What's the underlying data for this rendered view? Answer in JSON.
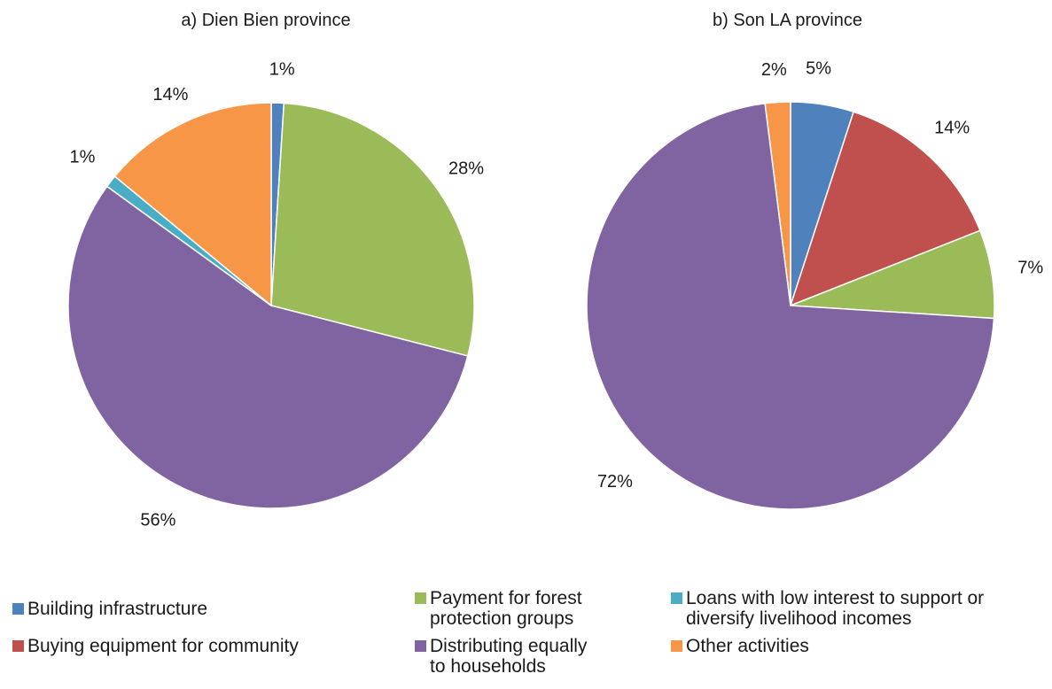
{
  "chart_data": [
    {
      "type": "pie",
      "title": "a) Dien Bien province",
      "slices": [
        {
          "label": "Building infrastructure",
          "value": 1,
          "display": "1%",
          "color": "#4f81bd"
        },
        {
          "label": "Payment for forest protection groups",
          "value": 28,
          "display": "28%",
          "color": "#9bbb59"
        },
        {
          "label": "Distributing equally to households",
          "value": 56,
          "display": "56%",
          "color": "#8064a2"
        },
        {
          "label": "Loans with low interest to support or diversify livelihood incomes",
          "value": 1,
          "display": "1%",
          "color": "#4bacc6"
        },
        {
          "label": "Other activities",
          "value": 14,
          "display": "14%",
          "color": "#f79646"
        }
      ]
    },
    {
      "type": "pie",
      "title": "b) Son LA province",
      "slices": [
        {
          "label": "Building infrastructure",
          "value": 5,
          "display": "5%",
          "color": "#4f81bd"
        },
        {
          "label": "Buying equipment for community",
          "value": 14,
          "display": "14%",
          "color": "#c0504d"
        },
        {
          "label": "Payment for forest protection groups",
          "value": 7,
          "display": "7%",
          "color": "#9bbb59"
        },
        {
          "label": "Distributing equally to households",
          "value": 72,
          "display": "72%",
          "color": "#8064a2"
        },
        {
          "label": "Other activities",
          "value": 2,
          "display": "2%",
          "color": "#f79646"
        }
      ]
    }
  ],
  "legend": [
    {
      "label": "Building infrastructure",
      "color": "#4f81bd"
    },
    {
      "label": "Buying equipment for community",
      "color": "#c0504d"
    },
    {
      "label": "Payment for forest\nprotection groups",
      "color": "#9bbb59"
    },
    {
      "label": "Distributing equally\nto households",
      "color": "#8064a2"
    },
    {
      "label": "Loans with low interest to support or\ndiversify livelihood incomes",
      "color": "#4bacc6"
    },
    {
      "label": "Other activities",
      "color": "#f79646"
    }
  ]
}
